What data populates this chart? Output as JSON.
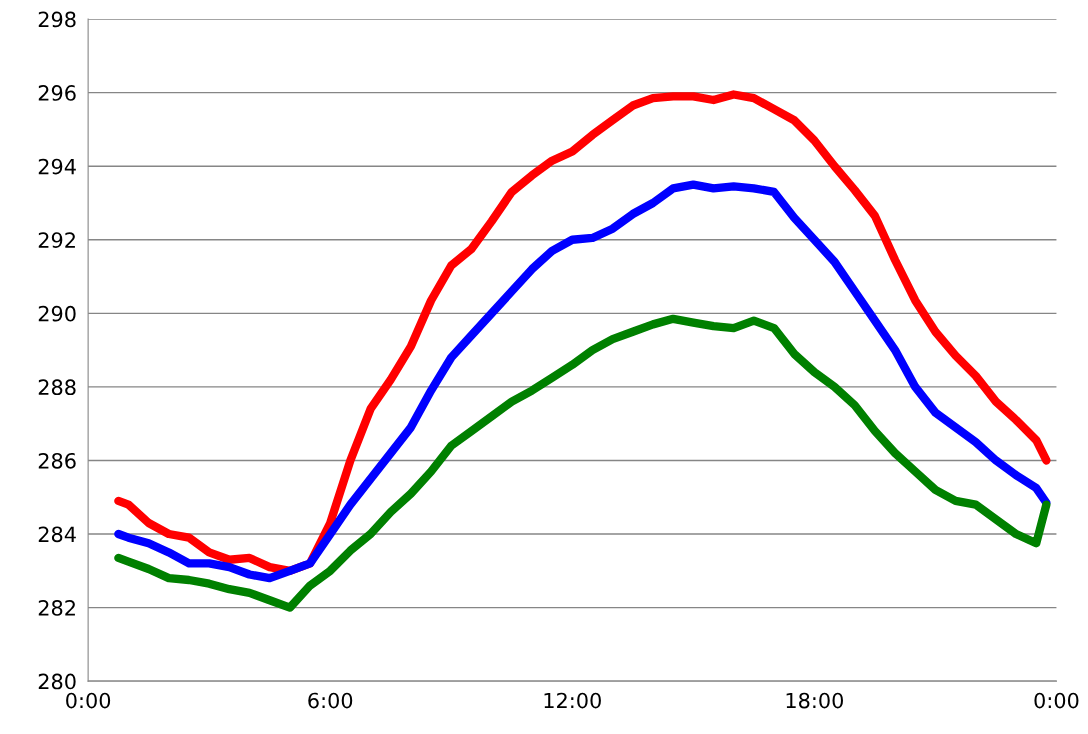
{
  "chart_data": {
    "type": "line",
    "xlim": [
      0,
      24
    ],
    "ylim": [
      280,
      298
    ],
    "xticks": [
      {
        "value": 0,
        "label": "0:00"
      },
      {
        "value": 6,
        "label": "6:00"
      },
      {
        "value": 12,
        "label": "12:00"
      },
      {
        "value": 18,
        "label": "18:00"
      },
      {
        "value": 24,
        "label": "0:00"
      }
    ],
    "yticks": [
      280,
      282,
      284,
      286,
      288,
      290,
      292,
      294,
      296,
      298
    ],
    "grid": "y",
    "marker": "none",
    "line_style": "solid",
    "x": [
      0.75,
      1.0,
      1.5,
      2.0,
      2.5,
      3.0,
      3.5,
      4.0,
      4.5,
      5.0,
      5.5,
      6.0,
      6.5,
      7.0,
      7.5,
      8.0,
      8.5,
      9.0,
      9.5,
      10.0,
      10.5,
      11.0,
      11.5,
      12.0,
      12.5,
      13.0,
      13.5,
      14.0,
      14.5,
      15.0,
      15.5,
      16.0,
      16.5,
      17.0,
      17.5,
      18.0,
      18.5,
      19.0,
      19.5,
      20.0,
      20.5,
      21.0,
      21.5,
      22.0,
      22.5,
      23.0,
      23.5,
      23.75
    ],
    "series": [
      {
        "color": "#ff0000",
        "values": [
          284.9,
          284.8,
          284.3,
          284.0,
          283.9,
          283.5,
          283.3,
          283.35,
          283.1,
          283.0,
          283.2,
          284.3,
          286.0,
          287.4,
          288.2,
          289.1,
          290.35,
          291.3,
          291.75,
          292.5,
          293.3,
          293.75,
          294.15,
          294.4,
          294.85,
          295.25,
          295.65,
          295.85,
          295.9,
          295.9,
          295.8,
          295.95,
          295.85,
          295.55,
          295.25,
          294.7,
          294.0,
          293.35,
          292.65,
          291.45,
          290.35,
          289.5,
          288.85,
          288.3,
          287.6,
          287.1,
          286.55,
          286.0
        ]
      },
      {
        "color": "#0000ff",
        "values": [
          284.0,
          283.9,
          283.75,
          283.5,
          283.2,
          283.2,
          283.1,
          282.9,
          282.8,
          283.0,
          283.2,
          284.0,
          284.8,
          285.5,
          286.2,
          286.9,
          287.9,
          288.8,
          289.4,
          290.0,
          290.6,
          291.2,
          291.7,
          292.0,
          292.05,
          292.3,
          292.7,
          293.0,
          293.4,
          293.5,
          293.4,
          293.45,
          293.4,
          293.3,
          292.6,
          292.0,
          291.4,
          290.6,
          289.8,
          289.0,
          288.0,
          287.3,
          286.9,
          286.5,
          286.0,
          285.6,
          285.25,
          284.85
        ]
      },
      {
        "color": "#008000",
        "values": [
          283.35,
          283.25,
          283.05,
          282.8,
          282.75,
          282.65,
          282.5,
          282.4,
          282.2,
          282.0,
          282.6,
          283.0,
          283.55,
          284.0,
          284.6,
          285.1,
          285.7,
          286.4,
          286.8,
          287.2,
          287.6,
          287.9,
          288.25,
          288.6,
          289.0,
          289.3,
          289.5,
          289.7,
          289.85,
          289.75,
          289.65,
          289.6,
          289.8,
          289.6,
          288.9,
          288.4,
          288.0,
          287.5,
          286.8,
          286.2,
          285.7,
          285.2,
          284.9,
          284.8,
          284.4,
          284.0,
          283.75,
          284.8
        ]
      }
    ]
  }
}
